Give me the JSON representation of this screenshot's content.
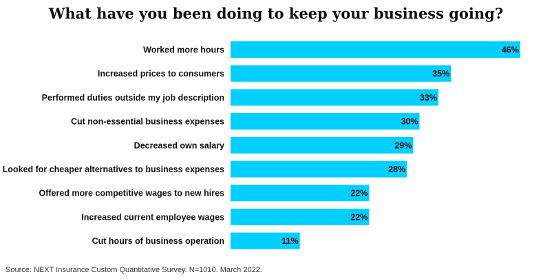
{
  "chart_data": {
    "type": "bar",
    "orientation": "horizontal",
    "title": "What have you been doing to keep your business going?",
    "categories": [
      "Worked more hours",
      "Increased prices to consumers",
      "Performed duties outside my job description",
      "Cut non-essential business expenses",
      "Decreased own salary",
      "Looked for cheaper alternatives to business expenses",
      "Offered more competitive wages to new hires",
      "Increased current employee wages",
      "Cut hours of business operation"
    ],
    "values": [
      46,
      35,
      33,
      30,
      29,
      28,
      22,
      22,
      11
    ],
    "value_labels": [
      "46%",
      "35%",
      "33%",
      "30%",
      "29%",
      "28%",
      "22%",
      "22%",
      "11%"
    ],
    "unit": "%",
    "bar_color": "#00cfff",
    "grid": false,
    "legend": "none"
  },
  "footer": {
    "source": "Source: NEXT Insurance Custom Quantitative Survey. N=1010. March 2022."
  }
}
